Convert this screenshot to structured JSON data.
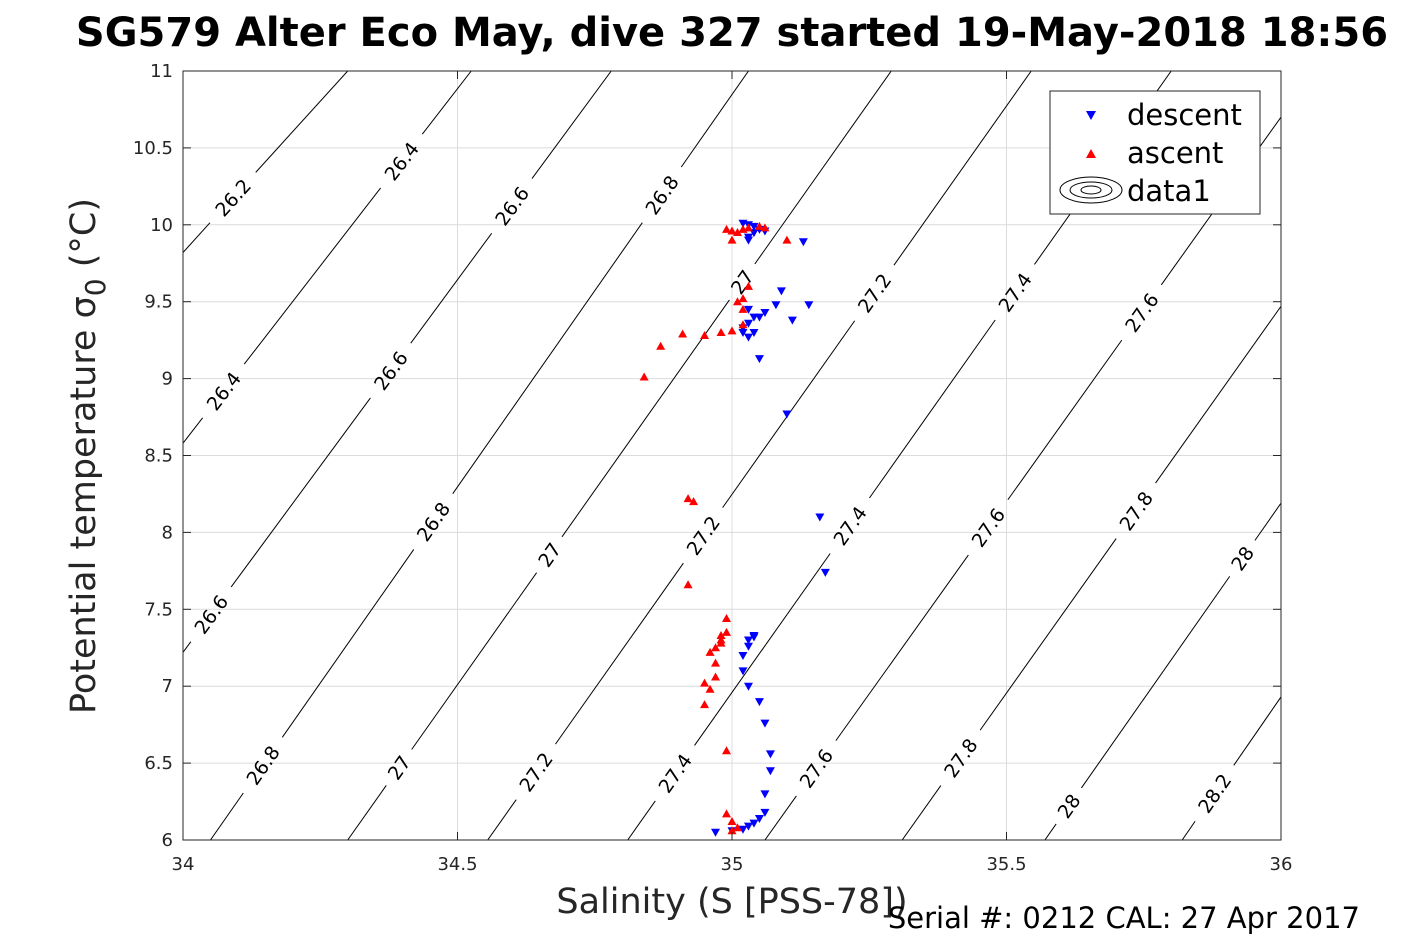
{
  "chart_data": {
    "type": "scatter",
    "title": "SG579 Alter Eco May, dive 327 started 19-May-2018 18:56",
    "xlabel": "Salinity (S [PSS-78])",
    "ylabel": "Potential temperature σ",
    "ylabel_subscript": "0",
    "ylabel_unit": " (°C)",
    "xlim": [
      34,
      36
    ],
    "ylim": [
      6,
      11
    ],
    "xticks": [
      34,
      34.5,
      35,
      35.5,
      36
    ],
    "xtick_labels": [
      "34",
      "34.5",
      "35",
      "35.5",
      "36"
    ],
    "yticks": [
      6,
      6.5,
      7,
      7.5,
      8,
      8.5,
      9,
      9.5,
      10,
      10.5,
      11
    ],
    "ytick_labels": [
      "6",
      "6.5",
      "7",
      "7.5",
      "8",
      "8.5",
      "9",
      "9.5",
      "10",
      "10.5",
      "11"
    ],
    "grid": true,
    "legend": {
      "placement": "top-right",
      "entries": [
        "descent",
        "ascent",
        "data1"
      ]
    },
    "footer": "Serial #: 0212  CAL: 27 Apr 2017",
    "colors": {
      "descent": "#0000ff",
      "ascent": "#ff0000",
      "contour": "#000000",
      "grid": "#dcdcdc",
      "axis": "#262626"
    },
    "contours": [
      {
        "level": "26.2",
        "x": [
          34.0,
          34.3
        ],
        "y": [
          9.82,
          11.0
        ],
        "labels": [
          [
            34.09,
            10.18
          ]
        ]
      },
      {
        "level": "26.4",
        "x": [
          34.0,
          34.525
        ],
        "y": [
          8.58,
          11.0
        ],
        "labels": [
          [
            34.07,
            8.93
          ],
          [
            34.385,
            10.45
          ]
        ]
      },
      {
        "level": "26.6",
        "x": [
          34.0,
          34.78
        ],
        "y": [
          7.22,
          11.0
        ],
        "labels": [
          [
            34.05,
            7.47
          ],
          [
            34.36,
            9.1
          ],
          [
            34.6,
            10.12
          ]
        ]
      },
      {
        "level": "26.8",
        "x": [
          34.05,
          35.03
        ],
        "y": [
          6.0,
          11.0
        ],
        "labels": [
          [
            34.14,
            6.5
          ],
          [
            34.42,
            8.16
          ],
          [
            34.87,
            10.2
          ]
        ]
      },
      {
        "level": "27",
        "x": [
          34.3,
          35.29
        ],
        "y": [
          6.0,
          11.0
        ],
        "labels": [
          [
            34.39,
            6.48
          ],
          [
            34.57,
            8.1
          ],
          [
            34.99,
            9.7
          ]
        ]
      },
      {
        "level": "27.2",
        "x": [
          34.555,
          35.545
        ],
        "y": [
          6.0,
          11.0
        ],
        "labels": [
          [
            34.62,
            6.5
          ],
          [
            34.88,
            8.15
          ],
          [
            35.25,
            9.58
          ]
        ]
      },
      {
        "level": "27.4",
        "x": [
          34.81,
          35.8
        ],
        "y": [
          6.0,
          11.0
        ],
        "labels": [
          [
            34.87,
            6.5
          ],
          [
            35.2,
            8.08
          ],
          [
            35.5,
            9.6
          ]
        ]
      },
      {
        "level": "27.6",
        "x": [
          35.06,
          36.0
        ],
        "y": [
          6.0,
          10.7
        ],
        "labels": [
          [
            35.14,
            6.5
          ],
          [
            35.44,
            8.1
          ],
          [
            35.75,
            9.42
          ]
        ]
      },
      {
        "level": "27.8",
        "x": [
          35.31,
          36.0
        ],
        "y": [
          6.0,
          9.47
        ],
        "labels": [
          [
            35.41,
            6.55
          ],
          [
            35.72,
            8.18
          ]
        ]
      },
      {
        "level": "28",
        "x": [
          35.57,
          36.0
        ],
        "y": [
          6.0,
          8.19
        ],
        "labels": [
          [
            35.61,
            6.23
          ],
          [
            35.91,
            7.88
          ]
        ]
      },
      {
        "level": "28.2",
        "x": [
          35.82,
          36.0
        ],
        "y": [
          6.0,
          6.93
        ],
        "labels": [
          [
            35.86,
            6.35
          ]
        ]
      }
    ],
    "series": [
      {
        "name": "descent",
        "marker": "triangle-down",
        "x": [
          34.97,
          35.0,
          35.02,
          35.03,
          35.04,
          35.05,
          35.06,
          35.06,
          35.07,
          35.07,
          35.06,
          35.05,
          35.03,
          35.02,
          35.02,
          35.03,
          35.03,
          35.04,
          35.04,
          35.03,
          35.02,
          35.02,
          35.03,
          35.05,
          35.06,
          35.08,
          35.11,
          35.14,
          35.17,
          35.16,
          35.1,
          35.05,
          35.04,
          35.04,
          35.03,
          35.03,
          35.03,
          35.04,
          35.05,
          35.04,
          35.03,
          35.02,
          35.04,
          35.06,
          35.09,
          35.13
        ],
        "y": [
          6.05,
          6.06,
          6.07,
          6.09,
          6.11,
          6.14,
          6.18,
          6.3,
          6.45,
          6.56,
          6.76,
          6.9,
          7.0,
          7.1,
          7.2,
          7.26,
          7.3,
          7.32,
          7.33,
          9.27,
          9.3,
          9.33,
          9.36,
          9.4,
          9.43,
          9.48,
          9.38,
          9.48,
          7.74,
          8.1,
          8.77,
          9.13,
          9.3,
          9.4,
          9.45,
          9.9,
          9.92,
          9.95,
          9.97,
          9.99,
          10.0,
          10.01,
          9.95,
          9.96,
          9.57,
          9.89
        ]
      },
      {
        "name": "ascent",
        "marker": "triangle-up",
        "x": [
          35.0,
          35.01,
          35.0,
          34.99,
          34.99,
          34.99,
          34.98,
          34.98,
          34.97,
          34.96,
          34.95,
          34.92,
          34.99,
          34.98,
          34.97,
          34.97,
          34.96,
          34.95,
          34.93,
          34.92,
          34.84,
          34.87,
          34.91,
          34.95,
          34.98,
          35.0,
          35.02,
          35.02,
          35.01,
          35.02,
          35.03,
          35.0,
          35.01,
          35.02,
          35.03,
          35.05,
          35.06,
          35.1,
          34.99,
          35.0
        ],
        "y": [
          6.06,
          6.08,
          6.12,
          6.17,
          6.58,
          7.35,
          7.33,
          7.28,
          7.25,
          7.22,
          7.02,
          7.66,
          7.44,
          7.3,
          7.15,
          7.06,
          6.98,
          6.88,
          8.2,
          8.22,
          9.01,
          9.21,
          9.29,
          9.28,
          9.3,
          9.31,
          9.35,
          9.45,
          9.5,
          9.52,
          9.6,
          9.9,
          9.95,
          9.97,
          9.98,
          9.99,
          9.98,
          9.9,
          9.97,
          9.96
        ]
      }
    ]
  }
}
